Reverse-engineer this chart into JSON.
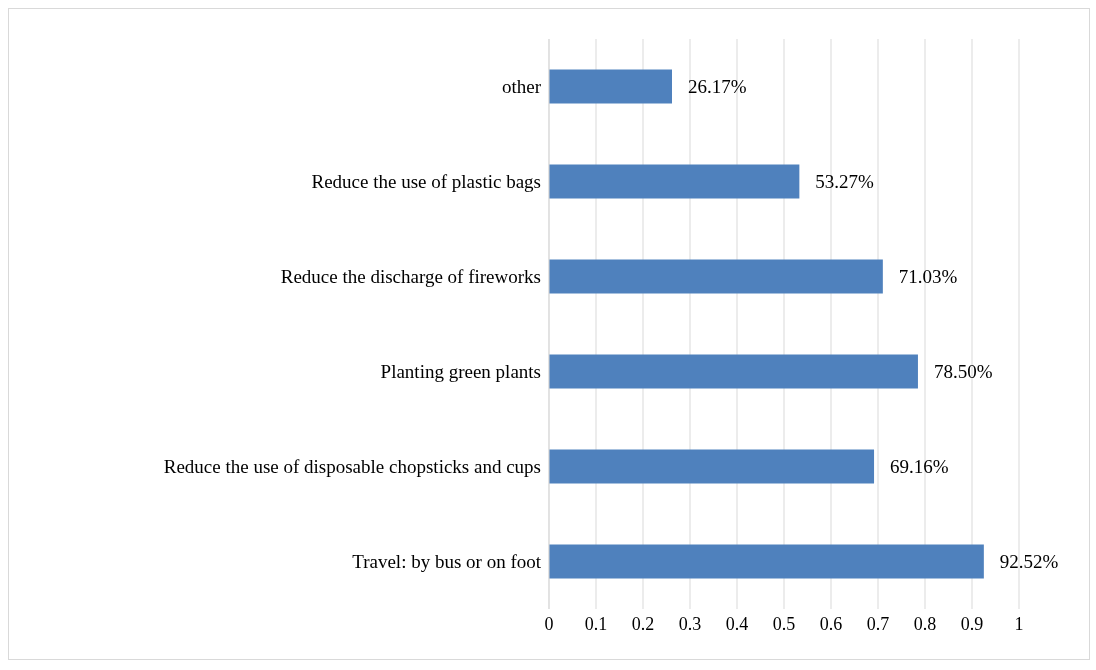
{
  "chart_data": {
    "type": "bar",
    "orientation": "horizontal",
    "categories": [
      "other",
      "Reduce the use of plastic bags",
      "Reduce the discharge of fireworks",
      "Planting green plants",
      "Reduce the use of disposable chopsticks and cups",
      "Travel: by bus or on foot"
    ],
    "values": [
      0.2617,
      0.5327,
      0.7103,
      0.785,
      0.6916,
      0.9252
    ],
    "value_labels": [
      "26.17%",
      "53.27%",
      "71.03%",
      "78.50%",
      "69.16%",
      "92.52%"
    ],
    "color": "#4f81bd",
    "xlim": [
      0,
      1
    ],
    "xticks": [
      0,
      0.1,
      0.2,
      0.3,
      0.4,
      0.5,
      0.6,
      0.7,
      0.8,
      0.9,
      1
    ],
    "grid": "x",
    "legend": false
  }
}
